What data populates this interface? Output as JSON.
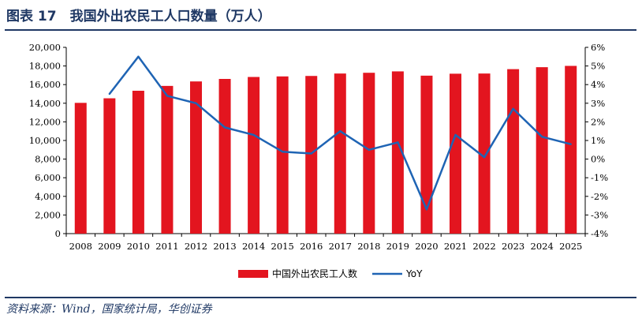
{
  "header": {
    "title": "图表 17　我国外出农民工人口数量（万人）"
  },
  "footer": {
    "source": "资料来源：Wind，国家统计局，华创证券"
  },
  "colors": {
    "bar": "#e3151f",
    "line": "#1f64b4",
    "rule": "#1f3864"
  },
  "chart_data": {
    "type": "bar",
    "categories": [
      "2008",
      "2009",
      "2010",
      "2011",
      "2012",
      "2013",
      "2014",
      "2015",
      "2016",
      "2017",
      "2018",
      "2019",
      "2020",
      "2021",
      "2022",
      "2023",
      "2024",
      "2025"
    ],
    "series": [
      {
        "name": "中国外出农民工人数",
        "type": "bar",
        "axis": "left",
        "values": [
          14040,
          14530,
          15340,
          15860,
          16340,
          16610,
          16820,
          16880,
          16930,
          17190,
          17270,
          17420,
          16960,
          17170,
          17190,
          17660,
          17870,
          18010
        ]
      },
      {
        "name": "YoY",
        "type": "line",
        "axis": "right",
        "values": [
          null,
          3.5,
          5.5,
          3.4,
          3.0,
          1.7,
          1.3,
          0.4,
          0.3,
          1.5,
          0.5,
          0.9,
          -2.7,
          1.3,
          0.1,
          2.7,
          1.2,
          0.8
        ]
      }
    ],
    "left_axis": {
      "ylim": [
        0,
        20000
      ],
      "ticks": [
        "0",
        "2,000",
        "4,000",
        "6,000",
        "8,000",
        "10,000",
        "12,000",
        "14,000",
        "16,000",
        "18,000",
        "20,000"
      ]
    },
    "right_axis": {
      "ylim": [
        -4,
        6
      ],
      "ticks": [
        "-4%",
        "-3%",
        "-2%",
        "-1%",
        "0%",
        "1%",
        "2%",
        "3%",
        "4%",
        "5%",
        "6%"
      ]
    },
    "legend_position": "bottom",
    "grid": false
  }
}
